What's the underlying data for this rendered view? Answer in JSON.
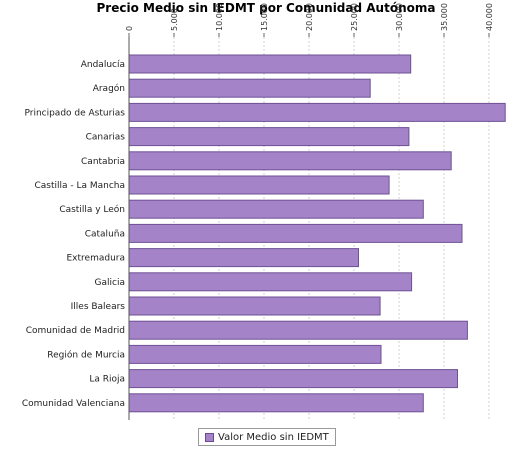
{
  "chart_data": {
    "type": "bar",
    "orientation": "horizontal",
    "title": "Precio Medio sin IEDMT por Comunidad Autónoma",
    "xlabel": "",
    "ylabel": "",
    "xlim": [
      0,
      43000
    ],
    "x_ticks": [
      "0",
      "5.000",
      "10.000",
      "15.000",
      "20.000",
      "25.000",
      "30.000",
      "35.000",
      "40.000"
    ],
    "x_tick_values": [
      0,
      5000,
      10000,
      15000,
      20000,
      25000,
      30000,
      35000,
      40000
    ],
    "grid": true,
    "legend_position": "bottom",
    "categories": [
      "Andalucía",
      "Aragón",
      "Principado de Asturias",
      "Canarias",
      "Cantabria",
      "Castilla - La Mancha",
      "Castilla y León",
      "Cataluña",
      "Extremadura",
      "Galicia",
      "Illes Balears",
      "Comunidad de Madrid",
      "Región de Murcia",
      "La Rioja",
      "Comunidad Valenciana"
    ],
    "series": [
      {
        "name": "Valor Medio sin IEDMT",
        "color": "#a483c8",
        "values": [
          31300,
          26800,
          41800,
          31100,
          35800,
          28900,
          32700,
          37000,
          25500,
          31400,
          27900,
          37600,
          28000,
          36500,
          32700
        ]
      }
    ]
  }
}
